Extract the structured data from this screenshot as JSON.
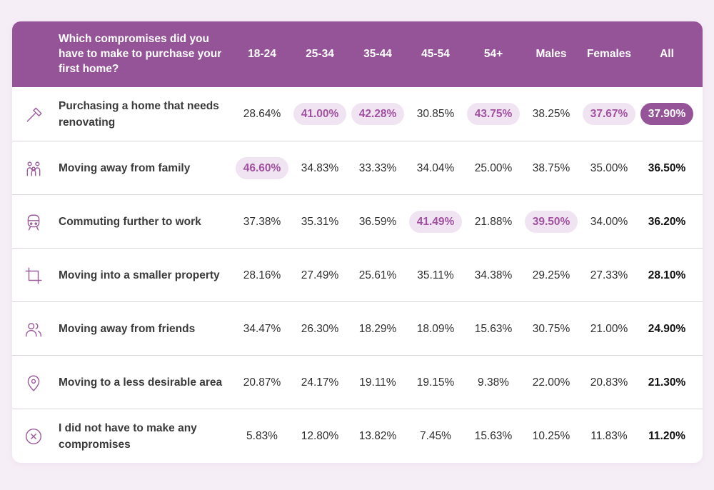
{
  "colors": {
    "header": "#955497",
    "highlight_bg": "#f1e4f2",
    "highlight_text": "#a0519f",
    "page_bg": "#f6eef7"
  },
  "chart_data": {
    "type": "table",
    "question": "Which compromises did you have to make to purchase your first home?",
    "columns": [
      "18-24",
      "25-34",
      "35-44",
      "45-54",
      "54+",
      "Males",
      "Females",
      "All"
    ],
    "rows": [
      {
        "icon": "hammer-icon",
        "label": "Purchasing a home that needs renovating",
        "values": [
          "28.64%",
          "41.00%",
          "42.28%",
          "30.85%",
          "43.75%",
          "38.25%",
          "37.67%",
          "37.90%"
        ],
        "highlighted": [
          1,
          2,
          4,
          6
        ],
        "all_highlighted": true
      },
      {
        "icon": "family-icon",
        "label": "Moving away from family",
        "values": [
          "46.60%",
          "34.83%",
          "33.33%",
          "34.04%",
          "25.00%",
          "38.75%",
          "35.00%",
          "36.50%"
        ],
        "highlighted": [
          0
        ],
        "all_highlighted": false
      },
      {
        "icon": "train-icon",
        "label": "Commuting further to work",
        "values": [
          "37.38%",
          "35.31%",
          "36.59%",
          "41.49%",
          "21.88%",
          "39.50%",
          "34.00%",
          "36.20%"
        ],
        "highlighted": [
          3,
          5
        ],
        "all_highlighted": false
      },
      {
        "icon": "crop-icon",
        "label": "Moving into a smaller property",
        "values": [
          "28.16%",
          "27.49%",
          "25.61%",
          "35.11%",
          "34.38%",
          "29.25%",
          "27.33%",
          "28.10%"
        ],
        "highlighted": [],
        "all_highlighted": false
      },
      {
        "icon": "friends-icon",
        "label": "Moving away from friends",
        "values": [
          "34.47%",
          "26.30%",
          "18.29%",
          "18.09%",
          "15.63%",
          "30.75%",
          "21.00%",
          "24.90%"
        ],
        "highlighted": [],
        "all_highlighted": false
      },
      {
        "icon": "location-pin-icon",
        "label": "Moving to a less desirable area",
        "values": [
          "20.87%",
          "24.17%",
          "19.11%",
          "19.15%",
          "9.38%",
          "22.00%",
          "20.83%",
          "21.30%"
        ],
        "highlighted": [],
        "all_highlighted": false
      },
      {
        "icon": "x-circle-icon",
        "label": "I did not have to make any compromises",
        "values": [
          "5.83%",
          "12.80%",
          "13.82%",
          "7.45%",
          "15.63%",
          "10.25%",
          "11.83%",
          "11.20%"
        ],
        "highlighted": [],
        "all_highlighted": false
      }
    ]
  }
}
